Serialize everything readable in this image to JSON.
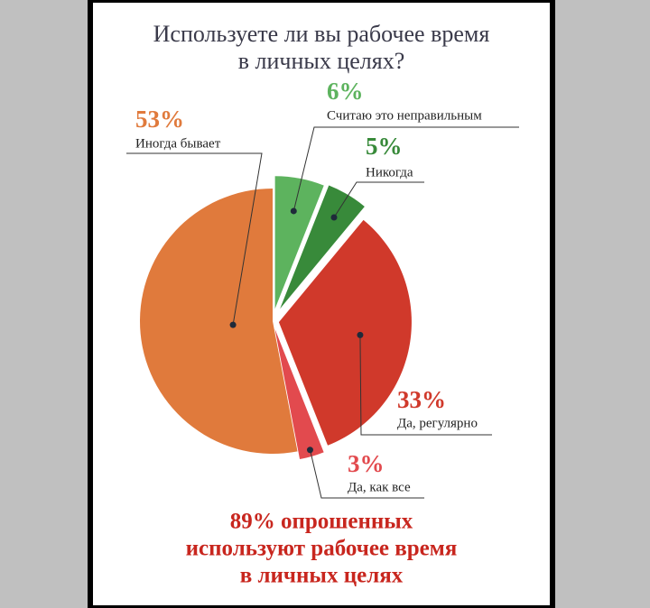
{
  "chart_data": {
    "type": "pie",
    "title": [
      "Используете ли вы рабочее время",
      "в личных целях?"
    ],
    "categories": [
      "Считаю это неправильным",
      "Никогда",
      "Да, регулярно",
      "Да, как все",
      "Иногда бывает"
    ],
    "values": [
      6,
      5,
      33,
      3,
      53
    ],
    "value_labels": [
      "6%",
      "5%",
      "33%",
      "3%",
      "53%"
    ],
    "colors": [
      "#5db35e",
      "#388a3a",
      "#d0392b",
      "#e24a4e",
      "#e07a3c"
    ],
    "annotation": [
      "89% опрошенных",
      "используют рабочее время",
      "в личных целях"
    ]
  }
}
